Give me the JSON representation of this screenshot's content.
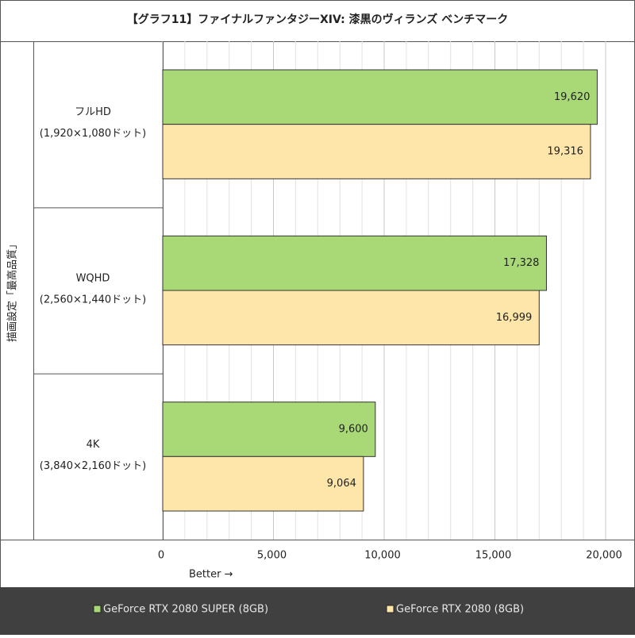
{
  "chart_data": {
    "type": "hbar",
    "title": "【グラフ11】ファイナルファンタジーXIV: 漆黒のヴィランズ ベンチマーク",
    "categories": [
      "フルHD",
      "WQHD",
      "4K"
    ],
    "category_sublabels": [
      "(1,920×1,080ドット)",
      "(2,560×1,440ドット)",
      "(3,840×2,160ドット)"
    ],
    "ylabel": "描画設定「最高品質」",
    "xlabel": "Better →",
    "series": [
      {
        "name": "GeForce RTX 2080 SUPER (8GB)",
        "color": "#a9d977",
        "values": [
          19620,
          17328,
          9600
        ],
        "value_labels": [
          "19,620",
          "17,328",
          "9,600"
        ]
      },
      {
        "name": "GeForce RTX 2080 (8GB)",
        "color": "#fee6aa",
        "values": [
          19316,
          16999,
          9064
        ],
        "value_labels": [
          "19,316",
          "16,999",
          "9,064"
        ]
      }
    ],
    "xlim": [
      0,
      20000
    ],
    "xticks": [
      0,
      {
        "value": 5000,
        "label": "5,000"
      },
      {
        "value": 10000,
        "label": "10,000"
      },
      {
        "value": 15000,
        "label": "15,000"
      },
      {
        "value": 20000,
        "label": "20,000"
      }
    ],
    "minor_grid_step": 1000,
    "grid": true
  }
}
